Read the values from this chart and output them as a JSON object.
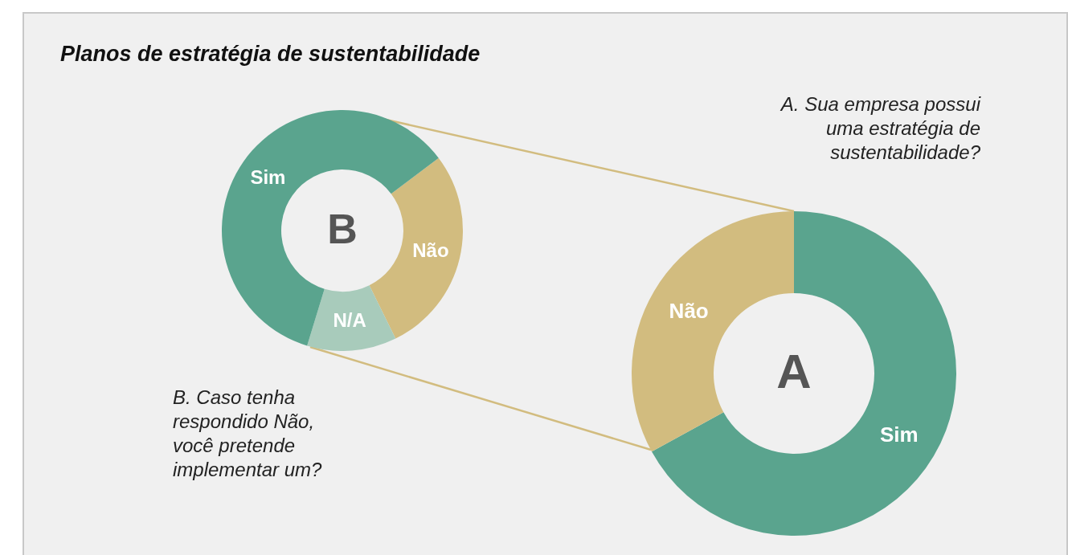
{
  "chart_data": [
    {
      "type": "donut",
      "title": "Planos de estratégia de sustentabilidade",
      "subtitle": "B. Caso tenha respondido Não, você pretende implementar um?",
      "annotations": [
        "B"
      ],
      "categories": [
        "Não",
        "N/A",
        "Sim"
      ],
      "values": [
        28,
        12,
        60
      ],
      "colors": [
        "#d2bc7f",
        "#a8cbbb",
        "#5aa48e"
      ]
    },
    {
      "type": "donut",
      "subtitle": "A. Sua empresa possui uma estratégia de sustentabilidade?",
      "annotations": [
        "A"
      ],
      "categories": [
        "Sim",
        "Não"
      ],
      "values": [
        67,
        33
      ],
      "colors": [
        "#5aa48e",
        "#d2bc7f"
      ]
    }
  ]
}
